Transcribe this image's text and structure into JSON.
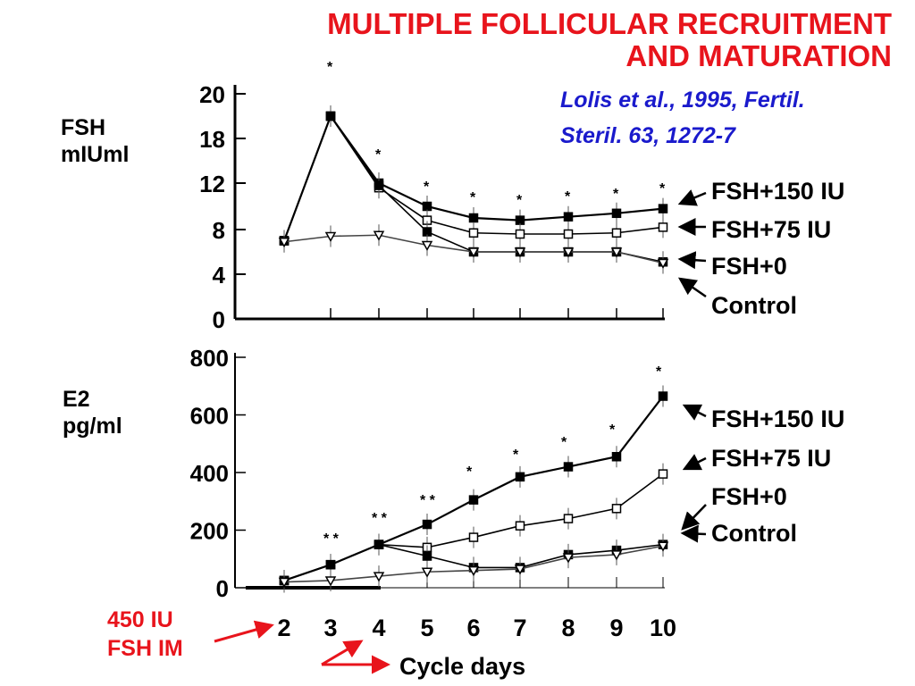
{
  "title": {
    "line1": "MULTIPLE FOLLICULAR RECRUITMENT",
    "line2": "AND MATURATION"
  },
  "citation": {
    "line1": "Lolis et al., 1995, Fertil.",
    "line2": "Steril. 63, 1272-7"
  },
  "colors": {
    "title": "#e8141c",
    "citation": "#1a1acc",
    "arrow": "#e8141c"
  },
  "annotation": {
    "dose_line1": "450 IU",
    "dose_line2": "FSH IM"
  },
  "chart_data": [
    {
      "type": "line",
      "ylabel_line1": "FSH",
      "ylabel_line2": "mIUml",
      "yticks": [
        "0",
        "4",
        "8",
        "12",
        "18",
        "20"
      ],
      "x": [
        2,
        3,
        4,
        5,
        6,
        7,
        8,
        9,
        10
      ],
      "series": [
        {
          "name": "FSH+150 IU",
          "marker": "filled-square",
          "values": [
            7,
            19,
            12,
            10,
            9,
            8.8,
            9.1,
            9.4,
            9.8
          ]
        },
        {
          "name": "FSH+75 IU",
          "marker": "open-square",
          "values": [
            7,
            19,
            11.6,
            8.8,
            7.7,
            7.6,
            7.6,
            7.7,
            8.2
          ]
        },
        {
          "name": "FSH+0",
          "marker": "filled-square",
          "values": [
            7,
            19,
            11.8,
            7.8,
            6,
            6,
            6,
            6,
            5.1
          ]
        },
        {
          "name": "Control",
          "marker": "open-triangle",
          "values": [
            6.9,
            7.4,
            7.5,
            6.6,
            6,
            6,
            6,
            6,
            5
          ]
        }
      ],
      "significance": [
        {
          "x": 3,
          "label": "*"
        },
        {
          "x": 4,
          "label": "*"
        },
        {
          "x": 5,
          "label": "*"
        },
        {
          "x": 6,
          "label": "*"
        },
        {
          "x": 7,
          "label": "*"
        },
        {
          "x": 8,
          "label": "*"
        },
        {
          "x": 9,
          "label": "*"
        },
        {
          "x": 10,
          "label": "*"
        }
      ]
    },
    {
      "type": "line",
      "ylabel_line1": "E2",
      "ylabel_line2": "pg/ml",
      "yticks": [
        "0",
        "200",
        "400",
        "600",
        "800"
      ],
      "ylim": [
        0,
        800
      ],
      "x": [
        2,
        3,
        4,
        5,
        6,
        7,
        8,
        9,
        10
      ],
      "xlabel": "Cycle days",
      "xticks": [
        "2",
        "3",
        "4",
        "5",
        "6",
        "7",
        "8",
        "9",
        "10"
      ],
      "series": [
        {
          "name": "FSH+150 IU",
          "marker": "filled-square",
          "values": [
            25,
            80,
            150,
            220,
            305,
            385,
            420,
            455,
            665
          ]
        },
        {
          "name": "FSH+75 IU",
          "marker": "open-square",
          "values": [
            25,
            80,
            150,
            140,
            175,
            215,
            240,
            275,
            395
          ]
        },
        {
          "name": "FSH+0",
          "marker": "filled-square",
          "values": [
            25,
            80,
            150,
            110,
            70,
            70,
            115,
            130,
            150
          ]
        },
        {
          "name": "Control",
          "marker": "open-triangle",
          "values": [
            20,
            25,
            40,
            55,
            60,
            65,
            105,
            115,
            145
          ]
        }
      ],
      "significance": [
        {
          "x": 3,
          "label": "* *"
        },
        {
          "x": 4,
          "label": "* *"
        },
        {
          "x": 5,
          "label": "* *"
        },
        {
          "x": 6,
          "label": "*"
        },
        {
          "x": 7,
          "label": "*"
        },
        {
          "x": 8,
          "label": "*"
        },
        {
          "x": 9,
          "label": "*"
        },
        {
          "x": 10,
          "label": "*"
        }
      ]
    }
  ]
}
